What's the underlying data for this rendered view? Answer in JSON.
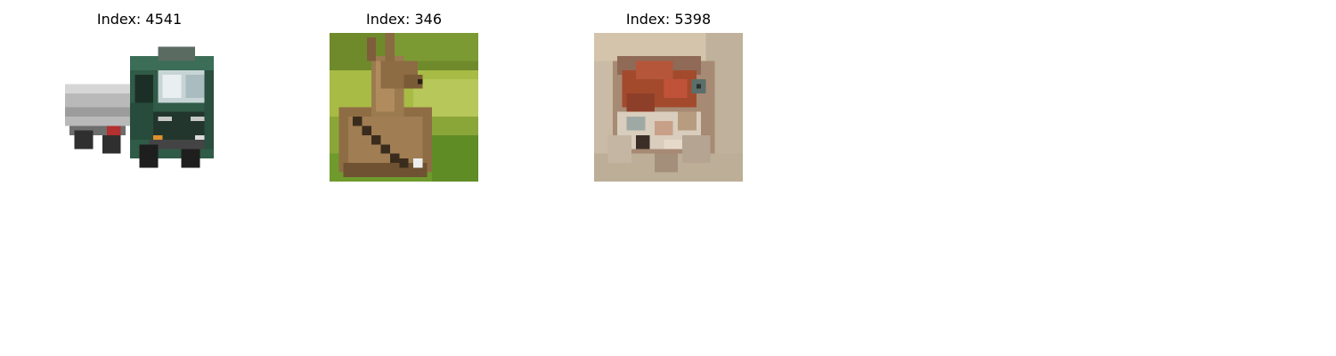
{
  "figure": {
    "panels": [
      {
        "title": "Index: 4541",
        "subject": "truck"
      },
      {
        "title": "Index: 346",
        "subject": "deer"
      },
      {
        "title": "Index: 5398",
        "subject": "frog"
      }
    ]
  }
}
